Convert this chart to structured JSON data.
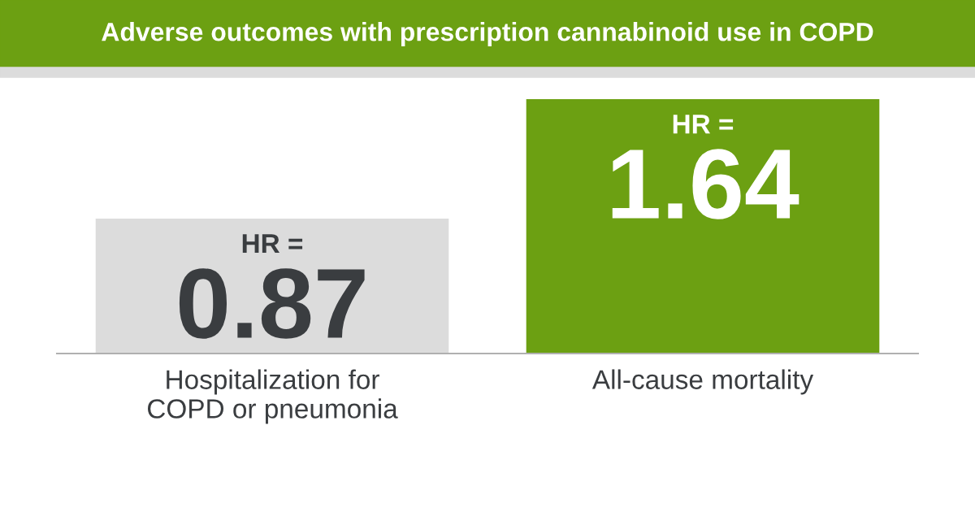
{
  "chart_data": {
    "type": "bar",
    "title": "Adverse outcomes with prescription cannabinoid use in COPD",
    "categories": [
      "Hospitalization for\nCOPD or pneumonia",
      "All-cause mortality"
    ],
    "values": [
      0.87,
      1.64
    ],
    "colors": [
      "#dcdcdc",
      "#6ca012"
    ],
    "value_labels": [
      "HR =\n0.87",
      "HR =\n1.64"
    ],
    "grid": false
  }
}
